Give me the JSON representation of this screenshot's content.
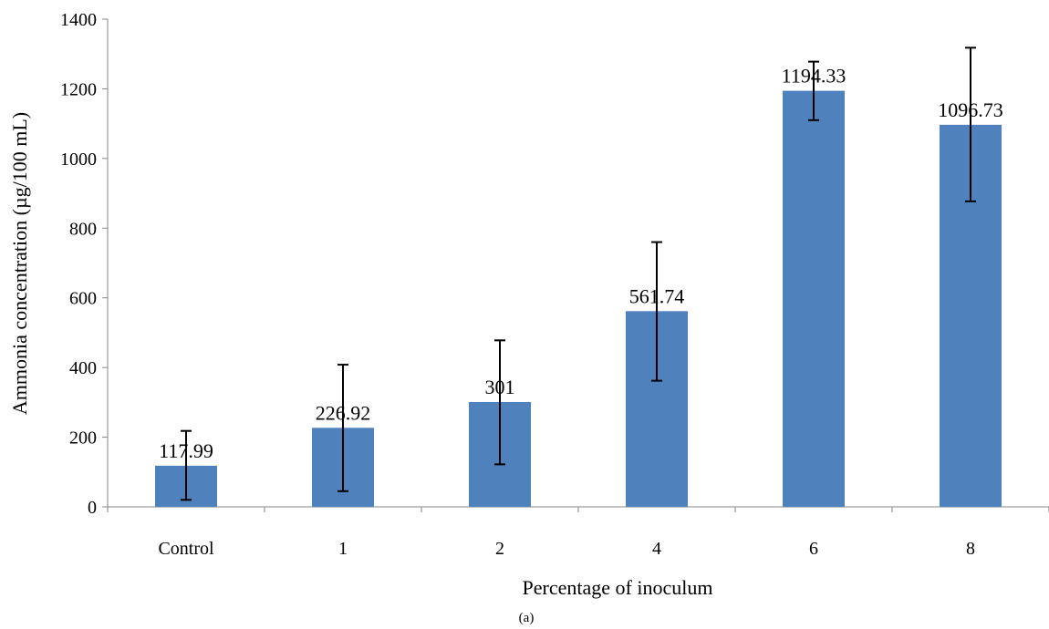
{
  "chart_data": {
    "type": "bar",
    "title": "",
    "xlabel": "Percentage of inoculum",
    "ylabel": "Ammonia concentration (µg/100 mL)",
    "categories": [
      "Control",
      "1",
      "2",
      "4",
      "6",
      "8"
    ],
    "series": [
      {
        "values": [
          117.99,
          226.92,
          301,
          561.74,
          1194.33,
          1096.73
        ],
        "data_labels": [
          "117.99",
          "226.92",
          "301",
          "561.74",
          "1194.33",
          "1096.73"
        ],
        "error_low": [
          20,
          45,
          122,
          362,
          1110,
          877
        ],
        "error_high": [
          218,
          408,
          478,
          760,
          1278,
          1318
        ]
      }
    ],
    "ylim": [
      0,
      1400
    ],
    "yticks": [
      0,
      200,
      400,
      600,
      800,
      1000,
      1200,
      1400
    ],
    "ytick_labels": [
      "0",
      "200",
      "400",
      "600",
      "800",
      "1000",
      "1200",
      "1400"
    ],
    "grid": false,
    "legend": "none",
    "bar_color": "#4f81bd",
    "axis_color": "#868686",
    "error_bar_color": "#000000"
  },
  "caption": "(a)"
}
